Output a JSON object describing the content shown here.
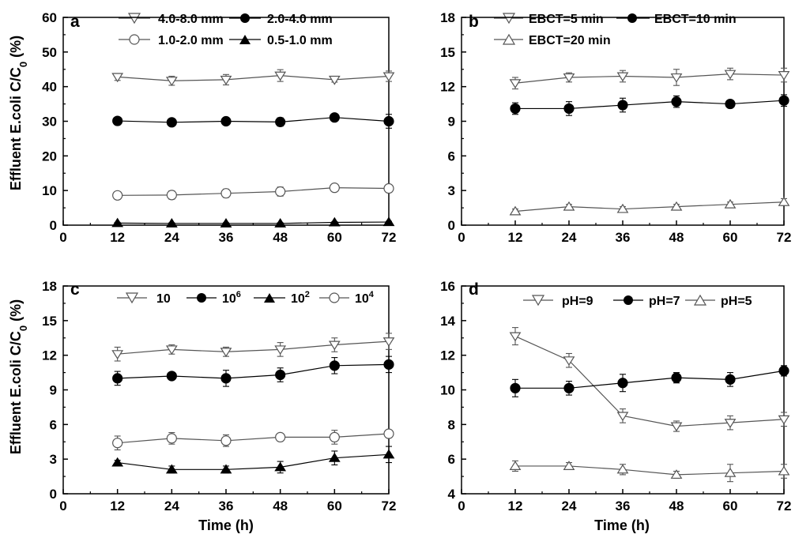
{
  "ylabel_parts": {
    "main": "Effluent E.coli C/C",
    "sub": "0",
    "tail": " (%)"
  },
  "chart_data": [
    {
      "type": "line",
      "panel": "a",
      "xlabel": "",
      "xlim": [
        0,
        72
      ],
      "xticks": [
        0,
        12,
        24,
        36,
        48,
        60,
        72
      ],
      "ylim": [
        0,
        60
      ],
      "yticks": [
        0,
        10,
        20,
        30,
        40,
        50,
        60
      ],
      "grid": false,
      "x": [
        12,
        24,
        36,
        48,
        60,
        72
      ],
      "series": [
        {
          "name": "4.0-8.0 mm",
          "marker": "triangle-down-open",
          "color": "#555555",
          "values": [
            42.8,
            41.7,
            42.0,
            43.2,
            42.0,
            43.0
          ],
          "errors": [
            1.0,
            1.3,
            1.5,
            1.7,
            0.7,
            1.5
          ]
        },
        {
          "name": "2.0-4.0 mm",
          "marker": "circle-filled",
          "color": "#000000",
          "values": [
            30.1,
            29.7,
            30.0,
            29.8,
            31.1,
            30.0
          ],
          "errors": [
            1.0,
            0.4,
            0.4,
            1.2,
            0.4,
            2.0
          ]
        },
        {
          "name": "1.0-2.0 mm",
          "marker": "circle-open",
          "color": "#555555",
          "values": [
            8.6,
            8.7,
            9.2,
            9.7,
            10.8,
            10.6
          ],
          "errors": [
            1.1,
            1.2,
            1.2,
            1.3,
            0.9,
            1.1
          ]
        },
        {
          "name": "0.5-1.0 mm",
          "marker": "triangle-up-filled",
          "color": "#000000",
          "values": [
            0.6,
            0.5,
            0.5,
            0.5,
            0.8,
            0.9
          ],
          "errors": [
            0.2,
            0.2,
            0.2,
            0.2,
            0.2,
            0.2
          ]
        }
      ]
    },
    {
      "type": "line",
      "panel": "b",
      "xlabel": "",
      "xlim": [
        0,
        72
      ],
      "xticks": [
        0,
        12,
        24,
        36,
        48,
        60,
        72
      ],
      "ylim": [
        0,
        18
      ],
      "yticks": [
        0,
        3,
        6,
        9,
        12,
        15,
        18
      ],
      "grid": false,
      "x": [
        12,
        24,
        36,
        48,
        60,
        72
      ],
      "series": [
        {
          "name": "EBCT=5 min",
          "marker": "triangle-down-open",
          "color": "#555555",
          "values": [
            12.3,
            12.8,
            12.9,
            12.8,
            13.1,
            13.0
          ],
          "errors": [
            0.5,
            0.4,
            0.5,
            0.7,
            0.5,
            0.6
          ]
        },
        {
          "name": "EBCT=10 min",
          "marker": "circle-filled",
          "color": "#000000",
          "values": [
            10.1,
            10.1,
            10.4,
            10.7,
            10.5,
            10.8
          ],
          "errors": [
            0.5,
            0.6,
            0.6,
            0.5,
            0.2,
            0.5
          ]
        },
        {
          "name": "EBCT=20 min",
          "marker": "triangle-up-open",
          "color": "#555555",
          "values": [
            1.2,
            1.6,
            1.4,
            1.6,
            1.8,
            2.0
          ],
          "errors": [
            0.2,
            0.2,
            0.2,
            0.2,
            0.2,
            0.3
          ]
        }
      ]
    },
    {
      "type": "line",
      "panel": "c",
      "xlabel": "Time (h)",
      "xlim": [
        0,
        72
      ],
      "xticks": [
        0,
        12,
        24,
        36,
        48,
        60,
        72
      ],
      "ylim": [
        0,
        18
      ],
      "yticks": [
        0,
        3,
        6,
        9,
        12,
        15,
        18
      ],
      "grid": false,
      "x": [
        12,
        24,
        36,
        48,
        60,
        72
      ],
      "series": [
        {
          "name": "10",
          "name_sup": "",
          "marker": "triangle-down-open",
          "color": "#555555",
          "values": [
            12.1,
            12.5,
            12.3,
            12.5,
            12.9,
            13.2
          ],
          "errors": [
            0.6,
            0.4,
            0.4,
            0.6,
            0.6,
            0.7
          ]
        },
        {
          "name": "10",
          "name_sup": "6",
          "marker": "circle-filled",
          "color": "#000000",
          "values": [
            10.0,
            10.2,
            10.0,
            10.3,
            11.1,
            11.2
          ],
          "errors": [
            0.6,
            0.3,
            0.7,
            0.6,
            0.7,
            0.7
          ]
        },
        {
          "name": "10",
          "name_sup": "2",
          "marker": "triangle-up-filled",
          "color": "#000000",
          "values": [
            2.7,
            2.1,
            2.1,
            2.3,
            3.1,
            3.4
          ],
          "errors": [
            0.2,
            0.3,
            0.3,
            0.5,
            0.6,
            0.7
          ]
        },
        {
          "name": "10",
          "name_sup": "4",
          "marker": "circle-open",
          "color": "#555555",
          "values": [
            4.4,
            4.8,
            4.6,
            4.9,
            4.9,
            5.2
          ],
          "errors": [
            0.6,
            0.5,
            0.5,
            0.3,
            0.6,
            0.3
          ]
        }
      ]
    },
    {
      "type": "line",
      "panel": "d",
      "xlabel": "Time (h)",
      "xlim": [
        0,
        72
      ],
      "xticks": [
        0,
        12,
        24,
        36,
        48,
        60,
        72
      ],
      "ylim": [
        4,
        16
      ],
      "yticks": [
        4,
        6,
        8,
        10,
        12,
        14,
        16
      ],
      "grid": false,
      "x": [
        12,
        24,
        36,
        48,
        60,
        72
      ],
      "series": [
        {
          "name": "pH=9",
          "marker": "triangle-down-open",
          "color": "#555555",
          "values": [
            13.1,
            11.7,
            8.5,
            7.9,
            8.1,
            8.3
          ],
          "errors": [
            0.5,
            0.4,
            0.4,
            0.3,
            0.4,
            0.4
          ]
        },
        {
          "name": "pH=7",
          "marker": "circle-filled",
          "color": "#000000",
          "values": [
            10.1,
            10.1,
            10.4,
            10.7,
            10.6,
            11.1
          ],
          "errors": [
            0.5,
            0.4,
            0.5,
            0.3,
            0.4,
            0.3
          ]
        },
        {
          "name": "pH=5",
          "marker": "triangle-up-open",
          "color": "#555555",
          "values": [
            5.6,
            5.6,
            5.4,
            5.1,
            5.2,
            5.3
          ],
          "errors": [
            0.3,
            0.2,
            0.3,
            0.2,
            0.5,
            0.4
          ]
        }
      ]
    }
  ]
}
